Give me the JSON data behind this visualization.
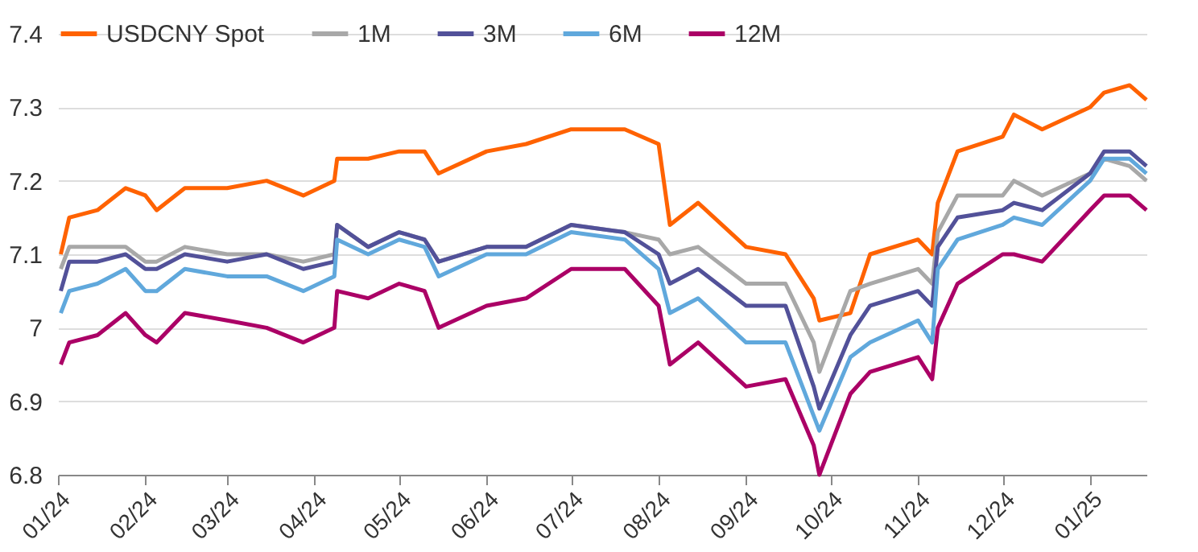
{
  "chart_data": {
    "type": "line",
    "x": [
      "2024-01-02",
      "2024-01-05",
      "2024-01-15",
      "2024-01-25",
      "2024-02-01",
      "2024-02-05",
      "2024-02-15",
      "2024-03-01",
      "2024-03-15",
      "2024-03-28",
      "2024-04-08",
      "2024-04-09",
      "2024-04-20",
      "2024-05-01",
      "2024-05-10",
      "2024-05-15",
      "2024-06-01",
      "2024-06-15",
      "2024-07-01",
      "2024-07-20",
      "2024-08-01",
      "2024-08-05",
      "2024-08-15",
      "2024-09-01",
      "2024-09-15",
      "2024-09-25",
      "2024-09-27",
      "2024-10-08",
      "2024-10-15",
      "2024-11-01",
      "2024-11-06",
      "2024-11-08",
      "2024-11-15",
      "2024-12-01",
      "2024-12-05",
      "2024-12-15",
      "2025-01-01",
      "2025-01-06",
      "2025-01-15",
      "2025-01-21"
    ],
    "series": [
      {
        "name": "USDCNY Spot",
        "color": "#ff6200",
        "values": [
          7.1,
          7.15,
          7.16,
          7.19,
          7.18,
          7.16,
          7.19,
          7.19,
          7.2,
          7.18,
          7.2,
          7.23,
          7.23,
          7.24,
          7.24,
          7.21,
          7.24,
          7.25,
          7.27,
          7.27,
          7.25,
          7.14,
          7.17,
          7.11,
          7.1,
          7.04,
          7.01,
          7.02,
          7.1,
          7.12,
          7.1,
          7.17,
          7.24,
          7.26,
          7.29,
          7.27,
          7.3,
          7.32,
          7.33,
          7.31
        ]
      },
      {
        "name": "1M",
        "color": "#a8a8a8",
        "values": [
          7.08,
          7.11,
          7.11,
          7.11,
          7.09,
          7.09,
          7.11,
          7.1,
          7.1,
          7.09,
          7.1,
          7.14,
          7.11,
          7.13,
          7.12,
          7.09,
          7.11,
          7.11,
          7.14,
          7.13,
          7.12,
          7.1,
          7.11,
          7.06,
          7.06,
          6.98,
          6.94,
          7.05,
          7.06,
          7.08,
          7.06,
          7.13,
          7.18,
          7.18,
          7.2,
          7.18,
          7.21,
          7.23,
          7.22,
          7.2
        ]
      },
      {
        "name": "3M",
        "color": "#525199",
        "values": [
          7.05,
          7.09,
          7.09,
          7.1,
          7.08,
          7.08,
          7.1,
          7.09,
          7.1,
          7.08,
          7.09,
          7.14,
          7.11,
          7.13,
          7.12,
          7.09,
          7.11,
          7.11,
          7.14,
          7.13,
          7.1,
          7.06,
          7.08,
          7.03,
          7.03,
          6.92,
          6.89,
          6.99,
          7.03,
          7.05,
          7.03,
          7.11,
          7.15,
          7.16,
          7.17,
          7.16,
          7.21,
          7.24,
          7.24,
          7.22
        ]
      },
      {
        "name": "6M",
        "color": "#60a8dc",
        "values": [
          7.02,
          7.05,
          7.06,
          7.08,
          7.05,
          7.05,
          7.08,
          7.07,
          7.07,
          7.05,
          7.07,
          7.12,
          7.1,
          7.12,
          7.11,
          7.07,
          7.1,
          7.1,
          7.13,
          7.12,
          7.08,
          7.02,
          7.04,
          6.98,
          6.98,
          6.88,
          6.86,
          6.96,
          6.98,
          7.01,
          6.98,
          7.08,
          7.12,
          7.14,
          7.15,
          7.14,
          7.2,
          7.23,
          7.23,
          7.21
        ]
      },
      {
        "name": "12M",
        "color": "#ab0066",
        "values": [
          6.95,
          6.98,
          6.99,
          7.02,
          6.99,
          6.98,
          7.02,
          7.01,
          7.0,
          6.98,
          7.0,
          7.05,
          7.04,
          7.06,
          7.05,
          7.0,
          7.03,
          7.04,
          7.08,
          7.08,
          7.03,
          6.95,
          6.98,
          6.92,
          6.93,
          6.84,
          6.8,
          6.91,
          6.94,
          6.96,
          6.93,
          7.0,
          7.06,
          7.1,
          7.1,
          7.09,
          7.16,
          7.18,
          7.18,
          7.16
        ]
      }
    ],
    "xlim": [
      "2024-01-01",
      "2025-01-21"
    ],
    "xticks": [
      {
        "value": "2024-01-01",
        "label": "01/24"
      },
      {
        "value": "2024-02-01",
        "label": "02/24"
      },
      {
        "value": "2024-03-01",
        "label": "03/24"
      },
      {
        "value": "2024-04-01",
        "label": "04/24"
      },
      {
        "value": "2024-05-01",
        "label": "05/24"
      },
      {
        "value": "2024-06-01",
        "label": "06/24"
      },
      {
        "value": "2024-07-01",
        "label": "07/24"
      },
      {
        "value": "2024-08-01",
        "label": "08/24"
      },
      {
        "value": "2024-09-01",
        "label": "09/24"
      },
      {
        "value": "2024-10-01",
        "label": "10/24"
      },
      {
        "value": "2024-11-01",
        "label": "11/24"
      },
      {
        "value": "2024-12-01",
        "label": "12/24"
      },
      {
        "value": "2025-01-01",
        "label": "01/25"
      }
    ],
    "ylim": [
      6.8,
      7.4
    ],
    "yticks": [
      6.8,
      6.9,
      7,
      7.1,
      7.2,
      7.3,
      7.4
    ],
    "grid": "y",
    "legend": "top",
    "line_style": "solid",
    "marker": "none"
  }
}
